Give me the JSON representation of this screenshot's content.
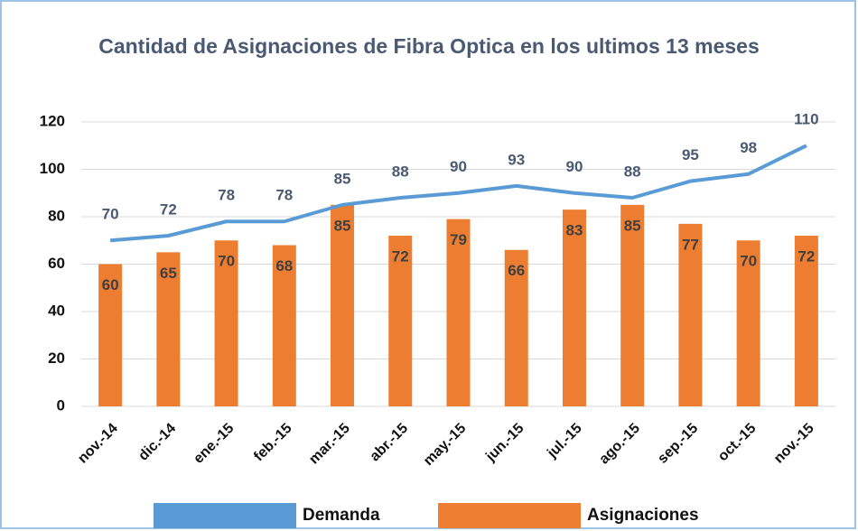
{
  "chart_data": {
    "type": "combo",
    "title": "Cantidad de Asignaciones de Fibra Optica en los ultimos 13 meses",
    "categories": [
      "nov.-14",
      "dic.-14",
      "ene.-15",
      "feb.-15",
      "mar.-15",
      "abr.-15",
      "may.-15",
      "jun.-15",
      "jul.-15",
      "ago.-15",
      "sep.-15",
      "oct.-15",
      "nov.-15"
    ],
    "series": [
      {
        "name": "Demanda",
        "type": "line",
        "color": "#5b9bd5",
        "values": [
          70,
          72,
          78,
          78,
          85,
          88,
          90,
          93,
          90,
          88,
          95,
          98,
          110
        ]
      },
      {
        "name": "Asignaciones",
        "type": "bar",
        "color": "#ed7d31",
        "values": [
          60,
          65,
          70,
          68,
          85,
          72,
          79,
          66,
          83,
          85,
          77,
          70,
          72
        ]
      }
    ],
    "ylim": [
      0,
      120
    ],
    "yticks": [
      0,
      20,
      40,
      60,
      80,
      100,
      120
    ],
    "grid": true,
    "legend": "bottom"
  }
}
